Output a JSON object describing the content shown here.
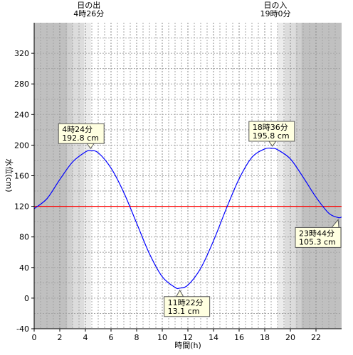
{
  "chart_data": {
    "type": "line",
    "xlabel": "時間(h)",
    "ylabel": "水位(cm)",
    "xlim": [
      0,
      24
    ],
    "ylim": [
      -40,
      360
    ],
    "x_ticks": [
      0,
      2,
      4,
      6,
      8,
      10,
      12,
      14,
      16,
      18,
      20,
      22
    ],
    "y_ticks": [
      -40,
      0,
      40,
      80,
      120,
      160,
      200,
      240,
      280,
      320
    ],
    "grid": true,
    "reference_line": {
      "y": 120,
      "color": "#ff0000"
    },
    "series": [
      {
        "color": "#0000ff",
        "x": [
          0,
          1,
          2,
          3,
          4,
          4.4,
          5,
          6,
          7,
          8,
          9,
          10,
          11,
          11.37,
          12,
          13,
          14,
          15,
          16,
          17,
          18,
          18.6,
          19,
          20,
          21,
          22,
          23,
          23.73,
          24
        ],
        "y": [
          117,
          130,
          155,
          178,
          191,
          192.8,
          190,
          170,
          138,
          98,
          58,
          28,
          14,
          13.1,
          17,
          39,
          75,
          117,
          156,
          184,
          195,
          195.8,
          194,
          182,
          158,
          132,
          111,
          105.3,
          106
        ]
      }
    ],
    "annotations": [
      {
        "line1": "4時24分",
        "line2": "192.8 cm",
        "x": 4.4,
        "y": 192.8
      },
      {
        "line1": "11時22分",
        "line2": "13.1 cm",
        "x": 11.37,
        "y": 13.1
      },
      {
        "line1": "18時36分",
        "line2": "195.8 cm",
        "x": 18.6,
        "y": 195.8
      },
      {
        "line1": "23時44分",
        "line2": "105.3 cm",
        "x": 23.73,
        "y": 105.3
      }
    ],
    "sun": {
      "sunrise": {
        "label": "日の出",
        "time": "4時26分"
      },
      "sunset": {
        "label": "日の入",
        "time": "19時0分"
      }
    },
    "shading": {
      "bands": [
        {
          "from": 0,
          "to": 2.6,
          "level": "night"
        },
        {
          "from": 2.6,
          "to": 3.0,
          "level": "twilight-dark"
        },
        {
          "from": 3.0,
          "to": 3.9,
          "level": "twilight-mid"
        },
        {
          "from": 3.9,
          "to": 4.43,
          "level": "twilight-light"
        },
        {
          "from": 19.0,
          "to": 19.55,
          "level": "twilight-light"
        },
        {
          "from": 19.55,
          "to": 20.4,
          "level": "twilight-mid"
        },
        {
          "from": 20.4,
          "to": 20.85,
          "level": "twilight-dark"
        },
        {
          "from": 20.85,
          "to": 24,
          "level": "night"
        }
      ],
      "colors": {
        "night": "#c0c0c0",
        "twilight-dark": "#cfcfcf",
        "twilight-mid": "#dcdcdc",
        "twilight-light": "#ececec"
      }
    },
    "colors": {
      "annotation_fill": "#ffffe0",
      "annotation_border": "#555555"
    }
  }
}
